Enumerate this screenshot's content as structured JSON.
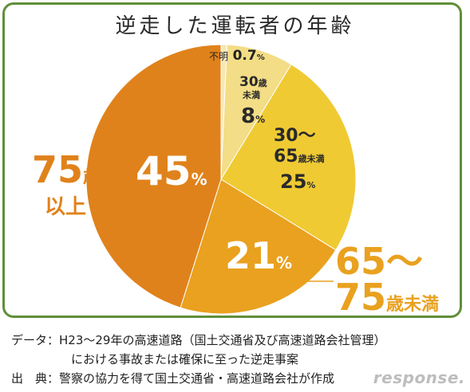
{
  "chart_data": {
    "type": "pie",
    "title": "逆走した運転者の年齢",
    "slices": [
      {
        "label": "不明",
        "value": 0.7,
        "color": "#f7e7b3"
      },
      {
        "label": "30歳未満",
        "value": 8,
        "color": "#f3dd86"
      },
      {
        "label": "30〜65歳未満",
        "value": 25,
        "color": "#efca33"
      },
      {
        "label": "65〜75歳未満",
        "value": 21,
        "color": "#e9a11f"
      },
      {
        "label": "75歳以上",
        "value": 45,
        "color": "#e0821b"
      }
    ]
  },
  "labels": {
    "unknown": {
      "name": "不明",
      "value": "0.7",
      "unit": "%"
    },
    "under30": {
      "name_a": "30",
      "name_b": "歳",
      "name_c": "未満",
      "value": "8",
      "unit": "%"
    },
    "age30_65": {
      "name_a": "30〜",
      "name_b": "65",
      "name_c": "歳未満",
      "value": "25",
      "unit": "%"
    },
    "age65_75": {
      "name_a": "65〜",
      "name_b": "75",
      "name_c": "歳未満",
      "value": "21",
      "unit": "%"
    },
    "over75": {
      "name_a": "75",
      "name_b": "歳",
      "name_c": "以上",
      "value": "45",
      "unit": "%"
    }
  },
  "notes": {
    "data_line1": "データ：H23〜29年の高速道路（国土交通省及び高速道路会社管理）",
    "data_line2": "における事故または確保に至った逆走事案",
    "source": "出　典：警察の協力を得て国土交通省・高速道路会社が作成"
  },
  "watermark": "response."
}
